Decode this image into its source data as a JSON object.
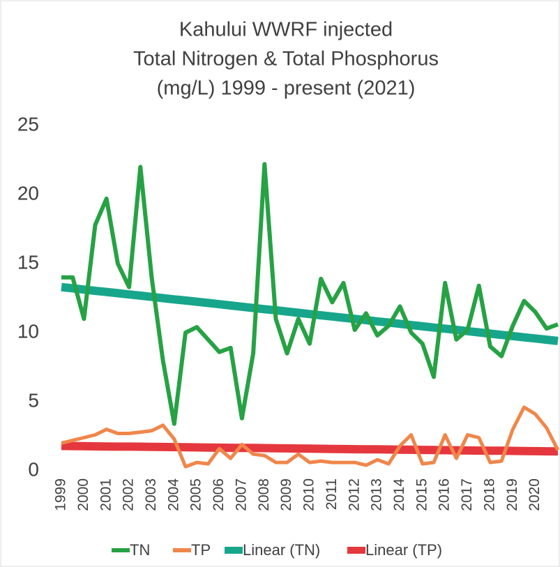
{
  "chart_data": {
    "type": "line",
    "title": [
      "Kahului WWRF injected",
      "Total Nitrogen & Total Phosphorus",
      "(mg/L) 1999 - present (2021)"
    ],
    "categories": [
      "1999",
      null,
      "2000",
      null,
      "2001",
      null,
      "2002",
      null,
      "2003",
      null,
      "2004",
      null,
      "2005",
      null,
      "2006",
      null,
      "2007",
      null,
      "2008",
      null,
      "2009",
      null,
      "2010",
      null,
      "2011",
      null,
      "2012",
      null,
      "2013",
      null,
      "2014",
      null,
      "2015",
      null,
      "2016",
      null,
      "2017",
      null,
      "2018",
      null,
      "2019",
      null,
      "2020",
      null,
      null
    ],
    "series": [
      {
        "name": "TN",
        "color": "#26a244",
        "values": [
          14,
          14,
          11,
          17.8,
          19.7,
          15,
          13.3,
          22,
          14,
          8,
          3.4,
          10,
          10.4,
          9.5,
          8.6,
          8.9,
          3.8,
          8.5,
          22.2,
          11,
          8.5,
          11,
          9.2,
          13.9,
          12.2,
          13.6,
          10.2,
          11.4,
          9.8,
          10.5,
          11.9,
          10,
          9.2,
          6.8,
          13.6,
          9.5,
          10.2,
          13.4,
          9,
          8.3,
          10.5,
          12.3,
          11.5,
          10.3,
          10.6
        ]
      },
      {
        "name": "TP",
        "color": "#f0864a",
        "values": [
          2,
          2.2,
          2.4,
          2.6,
          3,
          2.7,
          2.7,
          2.8,
          2.9,
          3.3,
          2.3,
          0.3,
          0.6,
          0.5,
          1.6,
          0.9,
          1.9,
          1.2,
          1.1,
          0.6,
          0.6,
          1.2,
          0.6,
          0.7,
          0.6,
          0.6,
          0.6,
          0.4,
          0.8,
          0.5,
          1.8,
          2.6,
          0.5,
          0.6,
          2.6,
          0.9,
          2.6,
          2.4,
          0.6,
          0.7,
          3,
          4.6,
          4.1,
          3.1,
          1.5
        ]
      },
      {
        "name": "Linear (TN)",
        "color": "#17a68c",
        "values": [
          13.3,
          13.21,
          13.12,
          13.03,
          12.95,
          12.86,
          12.77,
          12.68,
          12.59,
          12.5,
          12.41,
          12.33,
          12.24,
          12.15,
          12.06,
          11.97,
          11.88,
          11.79,
          11.7,
          11.62,
          11.53,
          11.44,
          11.35,
          11.26,
          11.17,
          11.08,
          11,
          10.91,
          10.82,
          10.73,
          10.64,
          10.55,
          10.46,
          10.37,
          10.29,
          10.2,
          10.11,
          10.02,
          9.93,
          9.84,
          9.75,
          9.66,
          9.58,
          9.49,
          9.4
        ]
      },
      {
        "name": "Linear (TP)",
        "color": "#e5383e",
        "values": [
          1.8,
          1.79,
          1.78,
          1.77,
          1.76,
          1.75,
          1.75,
          1.74,
          1.73,
          1.72,
          1.71,
          1.7,
          1.69,
          1.68,
          1.67,
          1.66,
          1.65,
          1.65,
          1.64,
          1.63,
          1.62,
          1.61,
          1.6,
          1.59,
          1.58,
          1.57,
          1.56,
          1.55,
          1.55,
          1.54,
          1.53,
          1.52,
          1.51,
          1.5,
          1.49,
          1.48,
          1.47,
          1.46,
          1.45,
          1.45,
          1.44,
          1.43,
          1.42,
          1.41,
          1.4
        ]
      }
    ],
    "ylim": [
      0,
      25
    ],
    "yticks": [
      0,
      5,
      10,
      15,
      20,
      25
    ],
    "grid": false,
    "legend": "bottom"
  }
}
